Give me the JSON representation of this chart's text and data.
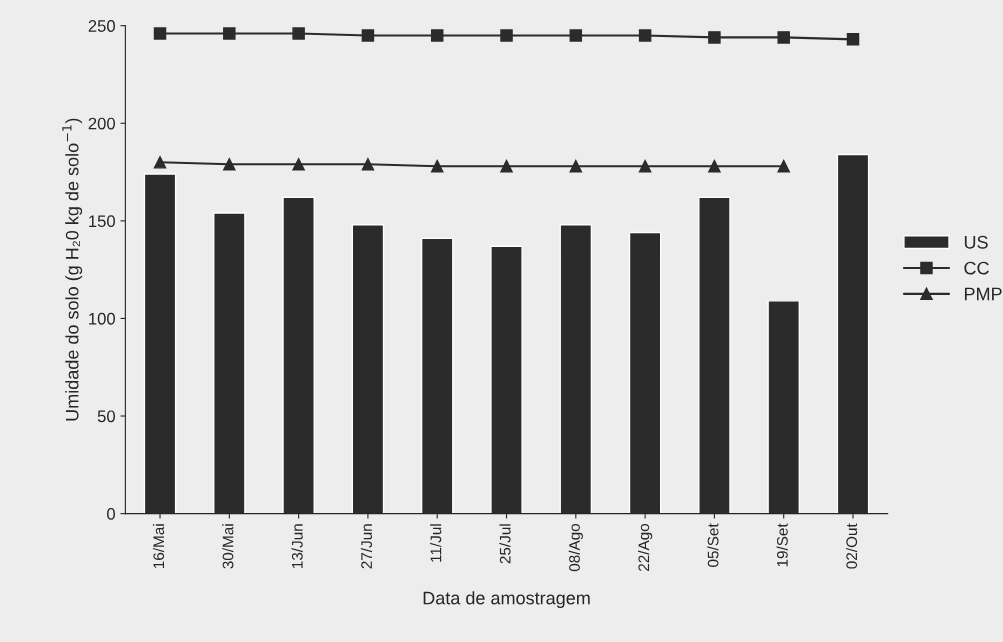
{
  "chart_data": {
    "type": "bar",
    "xlabel": "Data de amostragem",
    "ylabel": "Umidade do solo (g H₂0 kg de solo$^{−1}$)",
    "categories": [
      "16/Mai",
      "30/Mai",
      "13/Jun",
      "27/Jun",
      "11/Jul",
      "25/Jul",
      "08/Ago",
      "22/Ago",
      "05/Set",
      "19/Set",
      "02/Out"
    ],
    "series": [
      {
        "name": "US",
        "color": "#2b2b2b",
        "values": [
          174,
          154,
          162,
          148,
          141,
          137,
          148,
          144,
          162,
          109,
          184
        ]
      },
      {
        "name": "CC",
        "type": "line",
        "color": "#2b2b2b",
        "marker": "square",
        "values": [
          246,
          246,
          246,
          245,
          245,
          245,
          245,
          245,
          244,
          244,
          243
        ]
      },
      {
        "name": "PMP",
        "type": "line",
        "color": "#2b2b2b",
        "marker": "triangle",
        "values": [
          180,
          179,
          179,
          179,
          178,
          178,
          178,
          178,
          178,
          178,
          null
        ]
      }
    ],
    "ylim": [
      0,
      250
    ],
    "yticks": [
      0,
      50,
      100,
      150,
      200,
      250
    ],
    "grid": false,
    "legend": "right"
  }
}
